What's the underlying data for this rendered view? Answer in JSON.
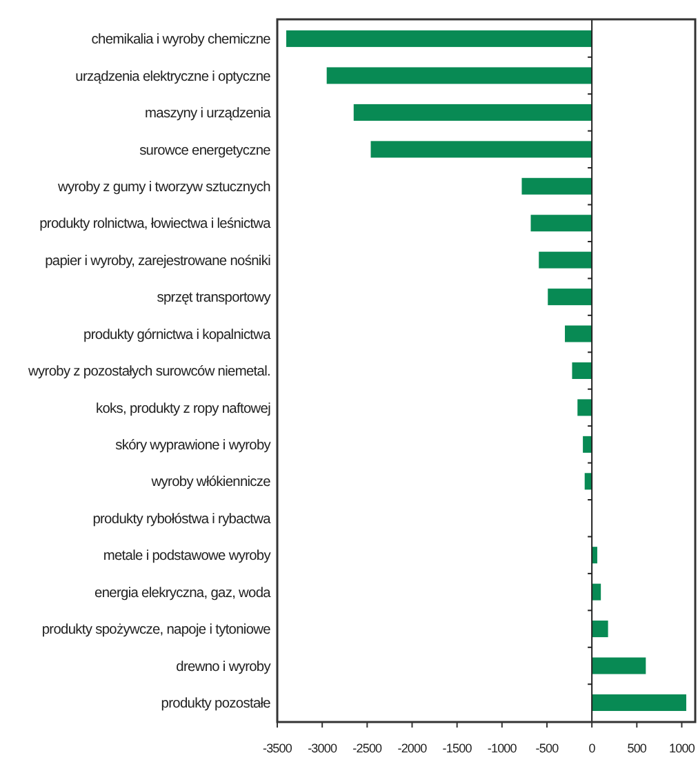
{
  "chart_data": {
    "type": "bar",
    "orientation": "horizontal",
    "categories": [
      "chemikalia i wyroby chemiczne",
      "urządzenia elektryczne i optyczne",
      "maszyny i urządzenia",
      "surowce energetyczne",
      "wyroby z gumy i tworzyw sztucznych",
      "produkty rolnictwa, łowiectwa i leśnictwa",
      "papier i wyroby, zarejestrowane nośniki",
      "sprzęt transportowy",
      "produkty górnictwa i kopalnictwa",
      "wyroby z pozostałych surowców niemetal.",
      "koks, produkty z ropy naftowej",
      "skóry wyprawione i wyroby",
      "wyroby włókiennicze",
      "produkty rybołóstwa i rybactwa",
      "metale i podstawowe wyroby",
      "energia elekryczna, gaz, woda",
      "produkty spożywcze, napoje i tytoniowe",
      "drewno i wyroby",
      "produkty pozostałe"
    ],
    "values": [
      -3400,
      -2950,
      -2650,
      -2460,
      -780,
      -680,
      -590,
      -490,
      -300,
      -220,
      -160,
      -100,
      -80,
      0,
      60,
      100,
      180,
      600,
      1050
    ],
    "color": "#088a54",
    "xlim": [
      -3500,
      1150
    ],
    "xticks": [
      -3500,
      -3000,
      -2500,
      -2000,
      -1500,
      -1000,
      -500,
      0,
      500,
      1000
    ]
  }
}
